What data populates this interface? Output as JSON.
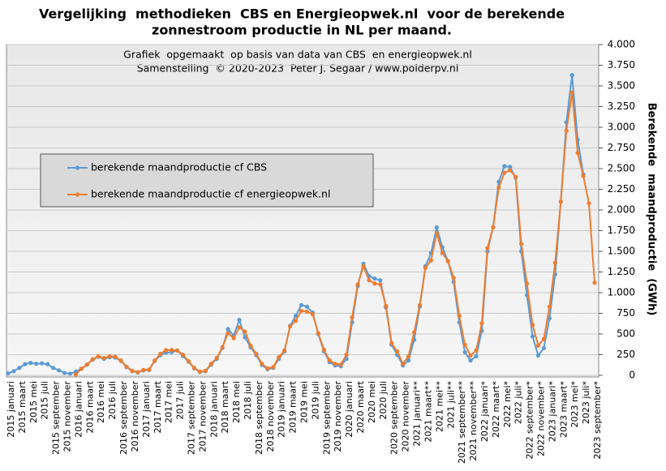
{
  "chart_data": {
    "type": "line",
    "title": [
      "Vergelijking  methodieken  CBS en Energieopwek.nl  voor de berekende",
      "zonnestroom productie in NL per maand."
    ],
    "subtitle": [
      "Grafiek  opgemaakt  op basis van data van CBS  en energieopwek.nl",
      "Samenstelling  © 2020-2023  Peter J. Segaar / www.polderpv.nl"
    ],
    "y_label": "Berekende  maandproductie  (GWh)",
    "categories": [
      "2015 januari",
      null,
      "2015 maart",
      null,
      "2015 mei",
      null,
      "2015 juli",
      null,
      "2015 september",
      null,
      "2015 november",
      null,
      "2016 januari",
      null,
      "2016 maart",
      null,
      "2016 mei",
      null,
      "2016 juli",
      null,
      "2016 september",
      null,
      "2016 november",
      null,
      "2017 januari",
      null,
      "2017 maart",
      null,
      "2017 mei",
      null,
      "2017 juli",
      null,
      "2017 september",
      null,
      "2017 november",
      null,
      "2018 januari",
      null,
      "2018 maart",
      null,
      "2018 mei",
      null,
      "2018 juli",
      null,
      "2018 september",
      null,
      "2018 november",
      null,
      "2019 januari",
      null,
      "2019 maart",
      null,
      "2019 mei",
      null,
      "2019 juli",
      null,
      "2019 september",
      null,
      "2019 november",
      null,
      "2020 januari",
      null,
      "2020 maart",
      null,
      "2020 mei",
      null,
      "2020 juli",
      null,
      "2020 september",
      null,
      "2020 november",
      null,
      "2021 januari**",
      null,
      "2021 maart**",
      null,
      "2021 mei**",
      null,
      "2021 juli**",
      null,
      "2021 september**",
      null,
      "2021 november**",
      null,
      "2022 januari*",
      null,
      "2022 maart*",
      null,
      "2022 mei*",
      null,
      "2022 juli*",
      null,
      "2022 september*",
      null,
      "2022 november*",
      null,
      "2023 januari*",
      null,
      "2023 maart*",
      null,
      "2023 mei*",
      null,
      "2023 juli*",
      null,
      "2023 september*"
    ],
    "series": [
      {
        "name": "berekende maandproductie cf CBS",
        "color": "#5b9bd5",
        "values": [
          25,
          50,
          90,
          135,
          150,
          140,
          145,
          135,
          90,
          60,
          30,
          20,
          45,
          80,
          130,
          190,
          225,
          200,
          220,
          215,
          175,
          100,
          50,
          35,
          60,
          65,
          175,
          245,
          275,
          280,
          300,
          235,
          165,
          85,
          40,
          50,
          130,
          200,
          330,
          560,
          480,
          670,
          460,
          340,
          245,
          125,
          75,
          90,
          200,
          290,
          600,
          720,
          850,
          830,
          760,
          500,
          290,
          160,
          120,
          110,
          200,
          640,
          1080,
          1350,
          1200,
          1170,
          1150,
          820,
          370,
          250,
          120,
          180,
          430,
          830,
          1320,
          1480,
          1790,
          1550,
          1380,
          1130,
          640,
          280,
          180,
          230,
          540,
          1500,
          1790,
          2340,
          2530,
          2520,
          2390,
          1500,
          970,
          470,
          240,
          330,
          690,
          1220,
          2100,
          3060,
          3630,
          2850,
          2430,
          null,
          null
        ]
      },
      {
        "name": "berekende maandproductie cf energieopwek.nl",
        "color": "#ed7d31",
        "values": [
          null,
          null,
          null,
          null,
          null,
          null,
          null,
          null,
          null,
          null,
          null,
          null,
          10,
          80,
          130,
          195,
          230,
          210,
          230,
          225,
          180,
          105,
          55,
          40,
          65,
          70,
          180,
          260,
          305,
          305,
          300,
          250,
          170,
          90,
          45,
          55,
          140,
          210,
          340,
          510,
          450,
          580,
          530,
          360,
          260,
          140,
          85,
          100,
          220,
          300,
          590,
          660,
          780,
          770,
          740,
          510,
          310,
          180,
          140,
          130,
          250,
          700,
          1100,
          1320,
          1150,
          1110,
          1100,
          840,
          390,
          290,
          140,
          230,
          520,
          850,
          1300,
          1390,
          1720,
          1480,
          1380,
          1180,
          720,
          370,
          240,
          300,
          630,
          1540,
          1790,
          2270,
          2450,
          2480,
          2400,
          1590,
          1110,
          610,
          360,
          440,
          830,
          1360,
          2100,
          2960,
          3420,
          2690,
          2410,
          2080,
          1120
        ]
      }
    ],
    "ylim": [
      0,
      4000
    ],
    "yticks": [
      0,
      250,
      500,
      750,
      {
        "value": 1000,
        "label": "1.000"
      },
      {
        "value": 1250,
        "label": "1.250"
      },
      {
        "value": 1500,
        "label": "1.500"
      },
      {
        "value": 1750,
        "label": "1.750"
      },
      {
        "value": 2000,
        "label": "2.000"
      },
      {
        "value": 2250,
        "label": "2.250"
      },
      {
        "value": 2500,
        "label": "2.500"
      },
      {
        "value": 2750,
        "label": "2.750"
      },
      {
        "value": 3000,
        "label": "3.000"
      },
      {
        "value": 3250,
        "label": "3.250"
      },
      {
        "value": 3500,
        "label": "3.500"
      },
      {
        "value": 3750,
        "label": "3.750"
      },
      {
        "value": 4000,
        "label": "4.000"
      }
    ],
    "grid": true
  }
}
